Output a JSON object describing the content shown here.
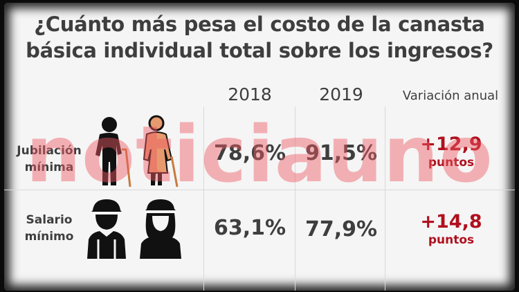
{
  "title": {
    "line1": "¿Cuánto más pesa el costo de la canasta",
    "line2": "básica individual total sobre los ingresos?"
  },
  "chart_data": {
    "type": "table",
    "columns": [
      "2018",
      "2019",
      "Variación anual"
    ],
    "rows": [
      {
        "label_line1": "Jubilación",
        "label_line2": "mínima",
        "v2018": "78,6%",
        "v2019": "91,5%",
        "variation": "+12,9",
        "variation_unit": "puntos",
        "icon": "elderly-couple-icon"
      },
      {
        "label_line1": "Salario",
        "label_line2": "mínimo",
        "v2018": "63,1%",
        "v2019": "77,9%",
        "variation": "+14,8",
        "variation_unit": "puntos",
        "icon": "workers-helmet-icon"
      }
    ]
  },
  "watermark": "noticiauno",
  "colors": {
    "text": "#3e3e3e",
    "accent": "#b0101e",
    "watermark": "#f05a64"
  }
}
